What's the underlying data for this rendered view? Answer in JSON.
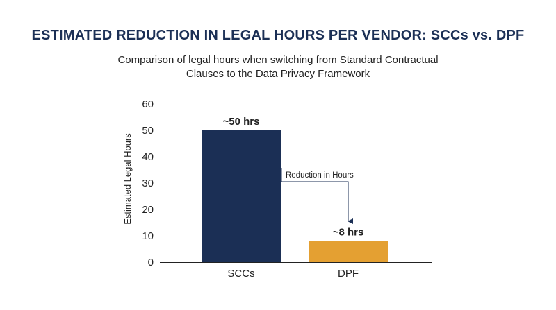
{
  "chart_data": {
    "type": "bar",
    "title": "ESTIMATED REDUCTION IN LEGAL HOURS PER VENDOR: SCCs vs. DPF",
    "subtitle": "Comparison of legal hours when switching from Standard Contractual Clauses to the Data Privacy Framework",
    "xlabel": "",
    "ylabel": "Estimated Legal Hours",
    "categories": [
      "SCCs",
      "DPF"
    ],
    "values": [
      50,
      8
    ],
    "data_labels": [
      "~50 hrs",
      "~8 hrs"
    ],
    "colors": [
      "#1b2f55",
      "#e4a032"
    ],
    "ylim": [
      0,
      60
    ],
    "yticks": [
      0,
      10,
      20,
      30,
      40,
      50,
      60
    ],
    "grid": false,
    "annotation": {
      "text": "Reduction in Hours",
      "from_category": "SCCs",
      "to_category": "DPF",
      "color": "#1b2f55"
    }
  }
}
